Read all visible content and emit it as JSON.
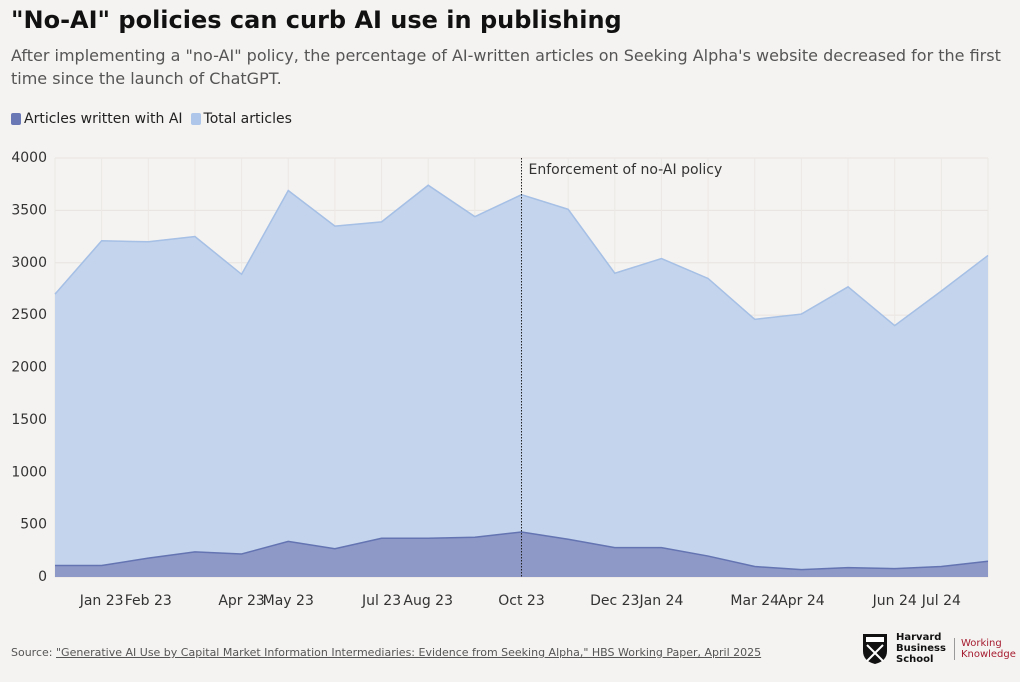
{
  "chart_data": {
    "type": "area",
    "title": "\"No-AI\" policies can curb AI use in publishing",
    "subtitle": "After implementing a \"no-AI\" policy, the percentage of AI-written articles on Seeking Alpha's website decreased for the first time since the launch of ChatGPT.",
    "categories": [
      null,
      "Jan 23",
      "Feb 23",
      null,
      "Apr 23",
      "May 23",
      null,
      "Jul 23",
      "Aug 23",
      null,
      "Oct 23",
      null,
      "Dec 23",
      "Jan 24",
      null,
      "Mar 24",
      "Apr 24",
      null,
      "Jun 24",
      "Jul 24",
      null
    ],
    "series": [
      {
        "name": "Total articles",
        "color": "#adc6ea",
        "values": [
          2700,
          3210,
          3200,
          3250,
          2890,
          3690,
          3350,
          3390,
          3740,
          3440,
          3650,
          3510,
          2900,
          3040,
          2850,
          2460,
          2510,
          2770,
          2400,
          2730,
          3070
        ]
      },
      {
        "name": "Articles written with AI",
        "color": "#6a78b5",
        "values": [
          110,
          110,
          180,
          240,
          220,
          340,
          270,
          370,
          370,
          380,
          430,
          360,
          280,
          280,
          200,
          100,
          70,
          90,
          80,
          100,
          150
        ]
      }
    ],
    "legend_order": [
      1,
      0
    ],
    "ylim": [
      0,
      4000
    ],
    "yticks": [
      0,
      500,
      1000,
      1500,
      2000,
      2500,
      3000,
      3500,
      4000
    ],
    "grid": true,
    "annotation": {
      "label": "Enforcement of no-AI policy",
      "x": "Oct 23"
    }
  },
  "footer": {
    "source_prefix": "Source:",
    "source_link": "\"Generative AI Use by Capital Market Information Intermediaries: Evidence from Seeking Alpha,\" HBS Working Paper, April 2025",
    "logo_left": [
      "Harvard",
      "Business",
      "School"
    ],
    "logo_right": [
      "Working",
      "Knowledge"
    ]
  }
}
